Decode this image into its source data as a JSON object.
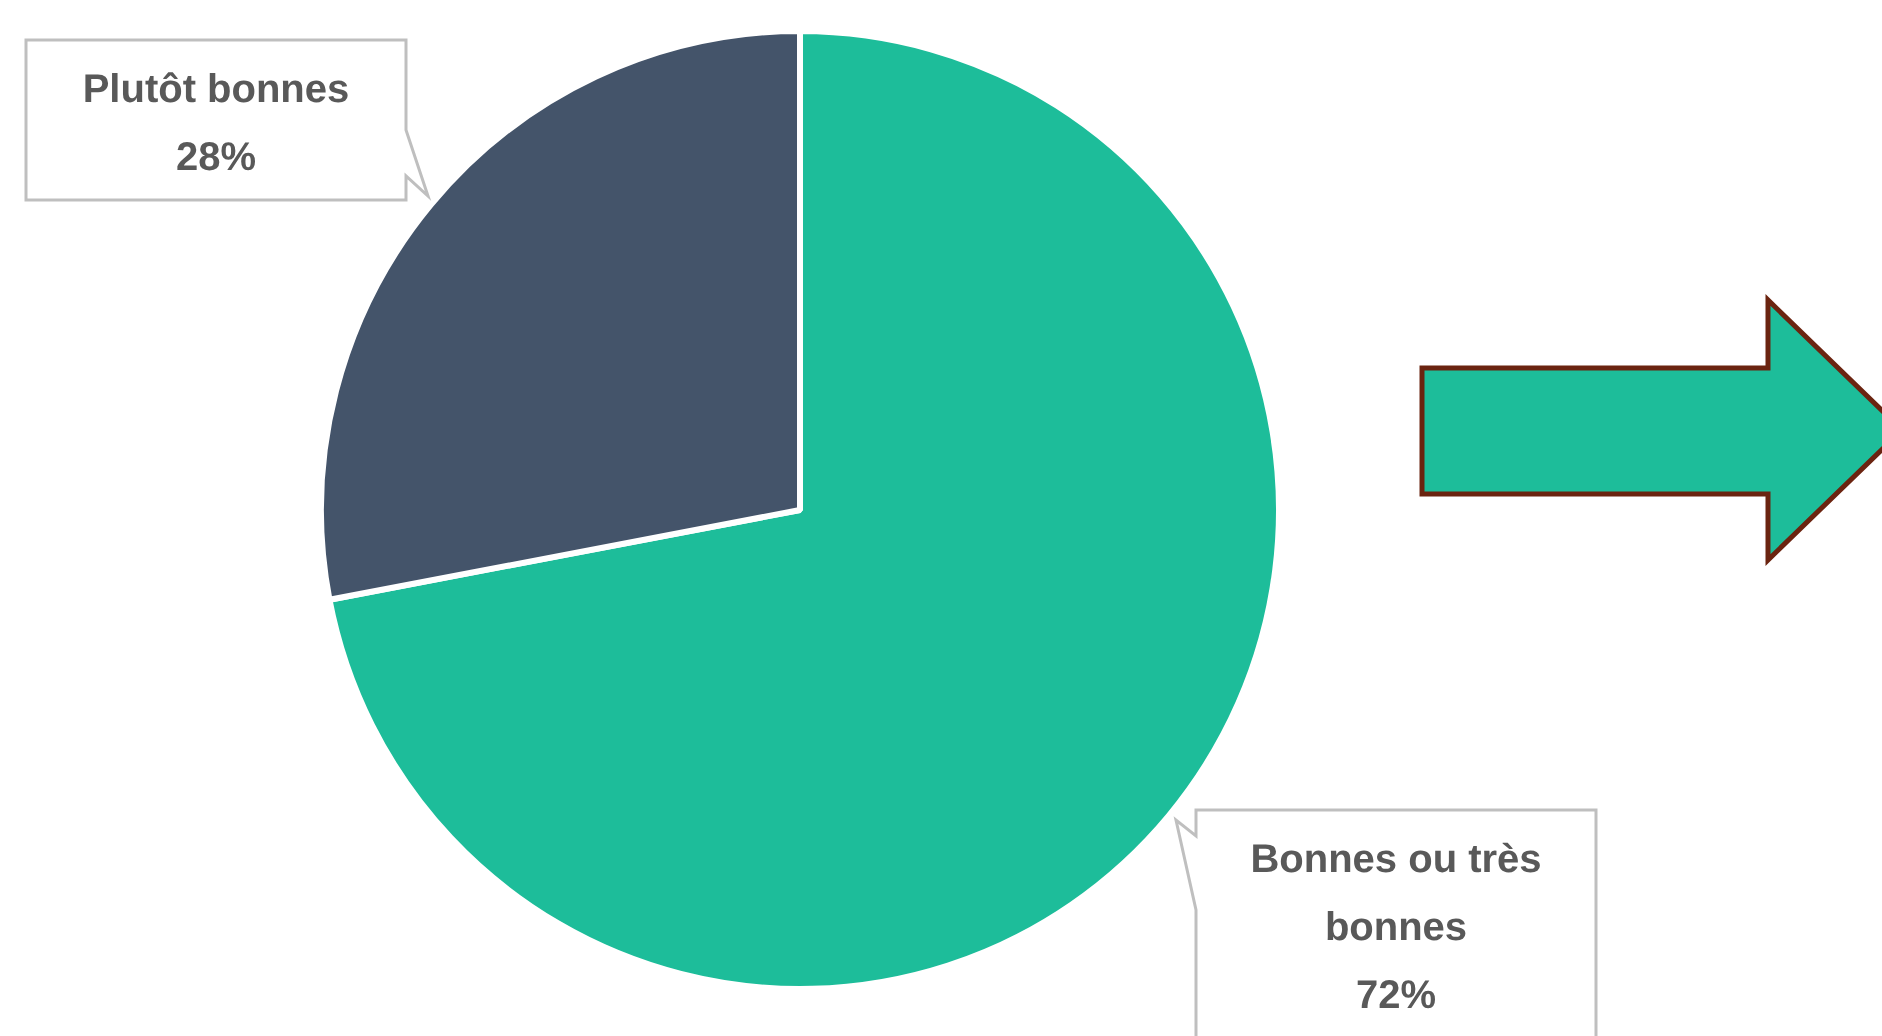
{
  "chart_data": {
    "type": "pie",
    "categories": [
      "Bonnes ou très bonnes",
      "Plutôt bonnes"
    ],
    "values": [
      72,
      28
    ],
    "colors": [
      "#1dbd9a",
      "#44546a"
    ],
    "value_labels": [
      "72%",
      "28%"
    ],
    "legend": false
  }
}
